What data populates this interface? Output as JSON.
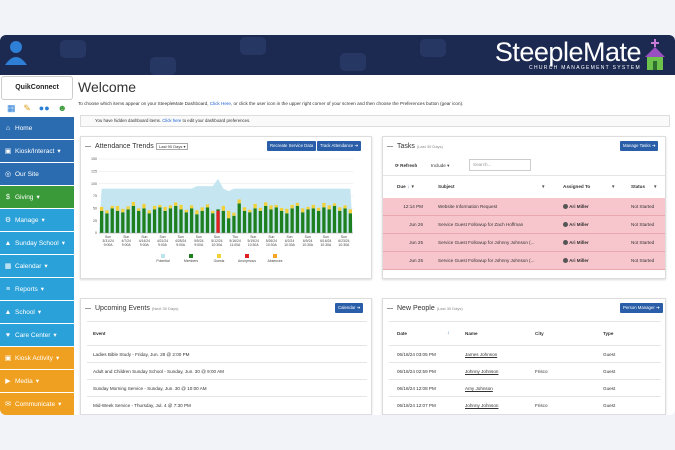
{
  "brand": {
    "name": "SteepleMate",
    "subtitle": "CHURCH MANAGEMENT SYSTEM"
  },
  "sidebar": {
    "quick_connect": "QuikConnect",
    "quick_icons": [
      "calendar-icon",
      "edit-icon",
      "people-icon",
      "person-add-icon"
    ],
    "items": [
      {
        "label": "Home",
        "icon": "home-icon",
        "color": "#2b6cb0"
      },
      {
        "label": "Kiosk/Interact",
        "icon": "kiosk-icon",
        "color": "#2b6cb0",
        "caret": true
      },
      {
        "label": "Our Site",
        "icon": "globe-icon",
        "color": "#2b6cb0"
      },
      {
        "label": "Giving",
        "icon": "money-icon",
        "color": "#3a9a3a",
        "caret": true
      },
      {
        "label": "Manage",
        "icon": "gear-icon",
        "color": "#2aa1d8",
        "caret": true
      },
      {
        "label": "Sunday School",
        "icon": "school-icon",
        "color": "#2aa1d8",
        "caret": true
      },
      {
        "label": "Calendar",
        "icon": "calendar-icon",
        "color": "#2aa1d8",
        "caret": true
      },
      {
        "label": "Reports",
        "icon": "reports-icon",
        "color": "#2aa1d8",
        "caret": true
      },
      {
        "label": "School",
        "icon": "school-icon",
        "color": "#2aa1d8",
        "caret": true
      },
      {
        "label": "Care Center",
        "icon": "care-icon",
        "color": "#2aa1d8",
        "caret": true
      },
      {
        "label": "Kiosk Activity",
        "icon": "kiosk-icon",
        "color": "#f0a020",
        "caret": true
      },
      {
        "label": "Media",
        "icon": "media-icon",
        "color": "#f0a020",
        "caret": true
      },
      {
        "label": "Communicate",
        "icon": "chat-icon",
        "color": "#f0a020",
        "caret": true
      }
    ]
  },
  "welcome": {
    "title": "Welcome",
    "instr_pre": "To choose which items appear on your SteepleMate Dashboard,",
    "instr_link": "Click Here",
    "instr_post": ", or click the user icon in the upper right corner of your screen and then choose the Preferences button (gear icon).",
    "hidden_pre": "You have hidden dashboard items.",
    "hidden_link": "Click here",
    "hidden_post": "to edit your dashboard preferences."
  },
  "attendance": {
    "title": "Attendance Trends",
    "range": "Last 90 Days",
    "btn_recreate": "Recreate Service Data",
    "btn_track": "Track Attendance"
  },
  "chart_data": {
    "type": "bar",
    "title": "Attendance Trends",
    "ylim": [
      0,
      150
    ],
    "yticks": [
      0,
      25,
      50,
      75,
      100,
      125,
      150
    ],
    "x_tick_labels": [
      [
        "Sun",
        "3/31/24",
        "9:00A"
      ],
      [
        "Sun",
        "4/7/24",
        "9:00A"
      ],
      [
        "Sun",
        "4/14/24",
        "9:00A"
      ],
      [
        "Sun",
        "4/21/24",
        "9:00A"
      ],
      [
        "Sun",
        "4/28/24",
        "9:00A"
      ],
      [
        "Sun",
        "5/5/24",
        "9:00A"
      ],
      [
        "Sun",
        "5/12/24",
        "10:30A"
      ],
      [
        "Thu",
        "5/16/24",
        "11:00A"
      ],
      [
        "Sun",
        "5/19/24",
        "10:30A"
      ],
      [
        "Sun",
        "5/26/24",
        "10:30A"
      ],
      [
        "Sun",
        "6/2/24",
        "10:30A"
      ],
      [
        "Sun",
        "6/9/24",
        "10:30A"
      ],
      [
        "Sun",
        "6/16/24",
        "10:30A"
      ],
      [
        "Sun",
        "6/23/24",
        "10:30A"
      ]
    ],
    "potential": [
      90,
      90,
      90,
      90,
      90,
      90,
      90,
      90,
      90,
      90,
      90,
      90,
      90,
      90,
      90,
      90,
      90,
      90,
      95,
      95,
      95,
      95,
      110,
      90,
      85,
      90,
      90,
      90,
      90,
      90,
      90,
      90,
      90,
      90,
      90,
      90,
      90,
      90,
      90,
      90,
      90,
      90,
      90,
      90,
      90,
      90,
      90,
      90
    ],
    "members": [
      45,
      40,
      50,
      45,
      42,
      48,
      55,
      45,
      50,
      40,
      48,
      52,
      45,
      50,
      55,
      48,
      42,
      50,
      38,
      45,
      52,
      40,
      48,
      45,
      30,
      35,
      60,
      45,
      42,
      50,
      45,
      55,
      48,
      52,
      45,
      40,
      50,
      55,
      42,
      48,
      50,
      45,
      52,
      48,
      55,
      45,
      50,
      40
    ],
    "guests": [
      8,
      6,
      5,
      10,
      7,
      6,
      8,
      5,
      9,
      6,
      7,
      5,
      8,
      6,
      7,
      9,
      5,
      6,
      8,
      7,
      6,
      5,
      0,
      10,
      15,
      6,
      8,
      7,
      5,
      9,
      6,
      7,
      8,
      5,
      6,
      9,
      7,
      6,
      8,
      5,
      7,
      6,
      9,
      8,
      5,
      7,
      6,
      8
    ],
    "anonymous": [
      0,
      0,
      0,
      0,
      0,
      0,
      0,
      0,
      0,
      0,
      0,
      0,
      0,
      0,
      0,
      0,
      0,
      0,
      0,
      0,
      0,
      0,
      45,
      0,
      0,
      0,
      0,
      0,
      0,
      0,
      0,
      0,
      0,
      0,
      0,
      0,
      0,
      0,
      0,
      0,
      0,
      0,
      0,
      0,
      0,
      0,
      0,
      0
    ],
    "absences": [
      0,
      0,
      0,
      0,
      0,
      0,
      0,
      0,
      0,
      0,
      0,
      0,
      0,
      0,
      0,
      0,
      0,
      0,
      0,
      0,
      0,
      0,
      0,
      0,
      0,
      0,
      0,
      0,
      0,
      0,
      0,
      0,
      0,
      0,
      0,
      0,
      0,
      0,
      0,
      0,
      0,
      0,
      0,
      0,
      0,
      0,
      0,
      0
    ],
    "legend": [
      "Potential",
      "Members",
      "Guests",
      "Anonymous",
      "Absences"
    ],
    "colors": {
      "potential": "#bfe3ee",
      "members": "#1e7f1e",
      "guests": "#f2d03a",
      "anonymous": "#e02020",
      "absences": "#f4a623"
    }
  },
  "tasks": {
    "title": "Tasks",
    "range": "(Last 30 Days)",
    "btn_manage": "Manage Tasks",
    "refresh": "Refresh",
    "include": "Include",
    "search_placeholder": "Search...",
    "columns": [
      "Due",
      "Subject",
      "Assigned To",
      "Status"
    ],
    "rows": [
      {
        "due": "12:14 PM",
        "subject": "Website Information Request",
        "assigned": "Ari Miller",
        "status": "Not Started"
      },
      {
        "due": "Jun 26",
        "subject": "Service Guest Followup for Zach Hoffman",
        "assigned": "Ari Miller",
        "status": "Not Started"
      },
      {
        "due": "Jun 25",
        "subject": "Service Guest Followup for Johnny Johnson (...",
        "assigned": "Ari Miller",
        "status": "Not Started"
      },
      {
        "due": "Jun 25",
        "subject": "Service Guest Followup for Johnny Johnson (...",
        "assigned": "Ari Miller",
        "status": "Not Started"
      }
    ]
  },
  "events": {
    "title": "Upcoming Events",
    "range": "(Next 30 Days)",
    "btn_calendar": "Calendar",
    "column": "Event",
    "rows": [
      "Ladies Bible Study - Friday, Jun. 28 @ 2:00 PM",
      "Adult and Children Sunday School - Sunday, Jun. 30 @ 9:00 AM",
      "Sunday Morning Service - Sunday, Jun. 30 @ 10:00 AM",
      "Mid-Week Service - Thursday, Jul. 4 @ 7:30 PM"
    ]
  },
  "people": {
    "title": "New People",
    "range": "(Last 30 Days)",
    "btn_manager": "Person Manager",
    "columns": [
      "Date",
      "Name",
      "City",
      "Type"
    ],
    "rows": [
      {
        "date": "06/18/24 03:05 PM",
        "name": "James Johnson",
        "city": "",
        "type": "Guest"
      },
      {
        "date": "06/18/24 02:59 PM",
        "name": "Johnny Johnson",
        "city": "Frisco",
        "type": "Guest"
      },
      {
        "date": "06/18/24 12:08 PM",
        "name": "Amy Johnson",
        "city": "",
        "type": "Guest"
      },
      {
        "date": "06/18/24 12:07 PM",
        "name": "Johnny Johnson",
        "city": "Frisco",
        "type": "Guest"
      }
    ]
  }
}
